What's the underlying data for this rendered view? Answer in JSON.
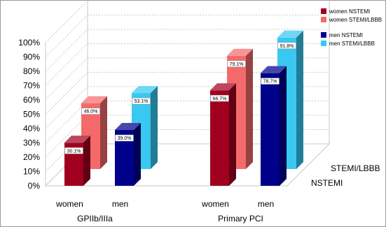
{
  "chart_data": {
    "type": "bar",
    "title": "",
    "xlabel": "",
    "ylabel": "",
    "ylim": [
      0,
      100
    ],
    "y_ticks": [
      "0%",
      "10%",
      "20%",
      "30%",
      "40%",
      "50%",
      "60%",
      "70%",
      "80%",
      "90%",
      "100%"
    ],
    "groups": [
      {
        "label": "GPIIb/IIIa",
        "subcategories": [
          "women",
          "men"
        ]
      },
      {
        "label": "Primary PCI",
        "subcategories": [
          "women",
          "men"
        ]
      }
    ],
    "depth_rows": [
      "NSTEMI",
      "STEMI/LBBB"
    ],
    "series": [
      {
        "name": "women NSTEMI",
        "color": "#a0001e",
        "values": [
          30.1,
          66.7
        ],
        "labels": [
          "30.1%",
          "66.7%"
        ]
      },
      {
        "name": "women STEMI/LBBB",
        "color": "#f46a6a",
        "values": [
          46.0,
          79.1
        ],
        "labels": [
          "46.0%",
          "79.1%"
        ]
      },
      {
        "name": "men NSTEMI",
        "color": "#00008b",
        "values": [
          39.0,
          78.7
        ],
        "labels": [
          "39.0%",
          "78.7%"
        ]
      },
      {
        "name": "men STEMI/LBBB",
        "color": "#38c8f0",
        "values": [
          53.1,
          91.8
        ],
        "labels": [
          "53.1%",
          "91.8%"
        ]
      }
    ],
    "grid": true,
    "legend_position": "top-right"
  }
}
